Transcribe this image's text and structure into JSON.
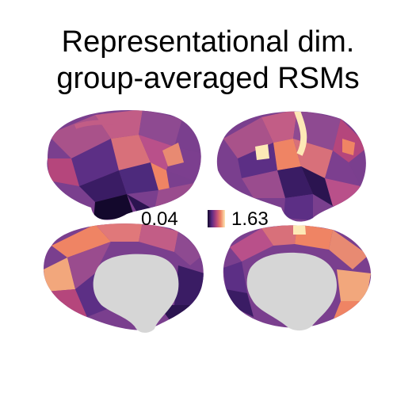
{
  "figure": {
    "title_line1": "Representational dim.",
    "title_line2": "group-averaged RSMs",
    "colormap": [
      "#13082c",
      "#5b2a83",
      "#b5467c",
      "#ef8464",
      "#fde9b6"
    ],
    "colorbar": {
      "min_label": "0.04",
      "max_label": "1.63"
    },
    "medial_wall_color": "#d6d6d6"
  }
}
